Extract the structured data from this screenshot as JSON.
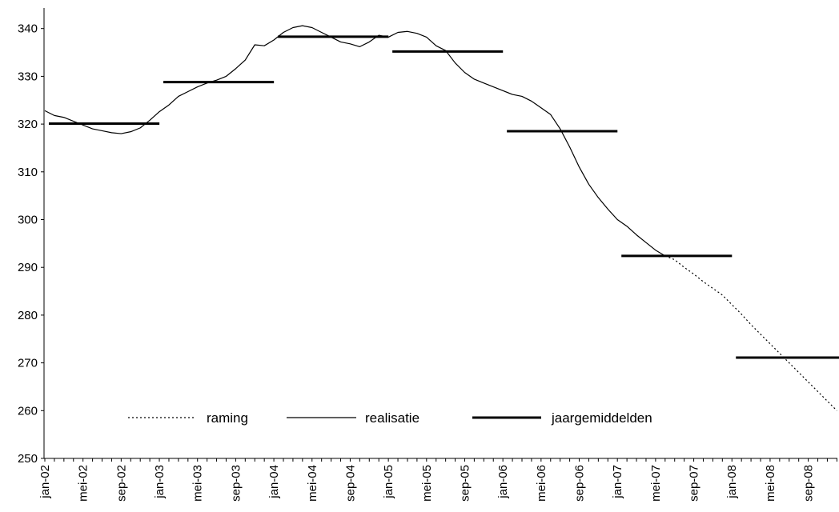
{
  "chart_data": {
    "type": "line",
    "title": "",
    "xlabel": "",
    "ylabel": "",
    "ylim": [
      250,
      345
    ],
    "yticks": [
      250,
      260,
      270,
      280,
      290,
      300,
      310,
      320,
      330,
      340
    ],
    "x_start_month": "2002-01",
    "x_range_months": [
      0,
      84
    ],
    "x_tick_labels": [
      "jan-02",
      "mei-02",
      "sep-02",
      "jan-03",
      "mei-03",
      "sep-03",
      "jan-04",
      "mei-04",
      "sep-04",
      "jan-05",
      "mei-05",
      "sep-05",
      "jan-06",
      "mei-06",
      "sep-06",
      "jan-07",
      "mei-07",
      "sep-07",
      "jan-08",
      "mei-08",
      "sep-08"
    ],
    "legend_position": "bottom-left, inside plot",
    "series": [
      {
        "name": "realisatie",
        "style": "solid-thin",
        "color": "#000000",
        "points": [
          [
            "2002-01",
            322.8
          ],
          [
            "2002-02",
            321.8
          ],
          [
            "2002-03",
            321.4
          ],
          [
            "2002-04",
            320.6
          ],
          [
            "2002-05",
            319.8
          ],
          [
            "2002-06",
            319.0
          ],
          [
            "2002-07",
            318.6
          ],
          [
            "2002-08",
            318.2
          ],
          [
            "2002-09",
            318.0
          ],
          [
            "2002-10",
            318.4
          ],
          [
            "2002-11",
            319.2
          ],
          [
            "2002-12",
            320.8
          ],
          [
            "2003-01",
            322.6
          ],
          [
            "2003-02",
            324.0
          ],
          [
            "2003-03",
            325.8
          ],
          [
            "2003-04",
            326.8
          ],
          [
            "2003-05",
            327.8
          ],
          [
            "2003-06",
            328.6
          ],
          [
            "2003-07",
            329.2
          ],
          [
            "2003-08",
            330.0
          ],
          [
            "2003-09",
            331.6
          ],
          [
            "2003-10",
            333.4
          ],
          [
            "2003-11",
            336.6
          ],
          [
            "2003-12",
            336.4
          ],
          [
            "2004-01",
            337.6
          ],
          [
            "2004-02",
            339.2
          ],
          [
            "2004-03",
            340.2
          ],
          [
            "2004-04",
            340.6
          ],
          [
            "2004-05",
            340.2
          ],
          [
            "2004-06",
            339.2
          ],
          [
            "2004-07",
            338.2
          ],
          [
            "2004-08",
            337.2
          ],
          [
            "2004-09",
            336.8
          ],
          [
            "2004-10",
            336.2
          ],
          [
            "2004-11",
            337.2
          ],
          [
            "2004-12",
            338.6
          ],
          [
            "2005-01",
            338.2
          ],
          [
            "2005-02",
            339.2
          ],
          [
            "2005-03",
            339.4
          ],
          [
            "2005-04",
            339.0
          ],
          [
            "2005-05",
            338.2
          ],
          [
            "2005-06",
            336.4
          ],
          [
            "2005-07",
            335.4
          ],
          [
            "2005-08",
            332.8
          ],
          [
            "2005-09",
            330.8
          ],
          [
            "2005-10",
            329.4
          ],
          [
            "2005-11",
            328.6
          ],
          [
            "2005-12",
            327.8
          ],
          [
            "2006-01",
            327.0
          ],
          [
            "2006-02",
            326.2
          ],
          [
            "2006-03",
            325.8
          ],
          [
            "2006-04",
            324.8
          ],
          [
            "2006-05",
            323.4
          ],
          [
            "2006-06",
            322.0
          ],
          [
            "2006-07",
            319.0
          ],
          [
            "2006-08",
            315.2
          ],
          [
            "2006-09",
            311.0
          ],
          [
            "2006-10",
            307.4
          ],
          [
            "2006-11",
            304.6
          ],
          [
            "2006-12",
            302.2
          ],
          [
            "2007-01",
            300.0
          ],
          [
            "2007-02",
            298.6
          ],
          [
            "2007-03",
            296.8
          ],
          [
            "2007-04",
            295.2
          ],
          [
            "2007-05",
            293.6
          ],
          [
            "2007-06",
            292.4
          ]
        ]
      },
      {
        "name": "raming",
        "style": "dotted",
        "color": "#000000",
        "points": [
          [
            "2007-06",
            292.4
          ],
          [
            "2007-07",
            291.6
          ],
          [
            "2007-08",
            290.0
          ],
          [
            "2007-09",
            288.6
          ],
          [
            "2007-10",
            287.0
          ],
          [
            "2007-11",
            285.6
          ],
          [
            "2007-12",
            284.2
          ],
          [
            "2008-01",
            282.2
          ],
          [
            "2008-02",
            280.2
          ],
          [
            "2008-03",
            278.0
          ],
          [
            "2008-04",
            276.0
          ],
          [
            "2008-05",
            274.0
          ],
          [
            "2008-06",
            272.0
          ],
          [
            "2008-07",
            270.0
          ],
          [
            "2008-08",
            268.0
          ],
          [
            "2008-09",
            266.0
          ],
          [
            "2008-10",
            264.0
          ],
          [
            "2008-11",
            262.0
          ],
          [
            "2008-12",
            260.0
          ]
        ]
      },
      {
        "name": "jaargemiddelden",
        "style": "solid-thick",
        "color": "#000000",
        "segments": [
          {
            "from": "2002-01",
            "to": "2002-12",
            "value": 320.1
          },
          {
            "from": "2003-01",
            "to": "2003-12",
            "value": 328.8
          },
          {
            "from": "2004-01",
            "to": "2004-12",
            "value": 338.3
          },
          {
            "from": "2005-01",
            "to": "2005-12",
            "value": 335.2
          },
          {
            "from": "2006-01",
            "to": "2006-12",
            "value": 318.5
          },
          {
            "from": "2007-01",
            "to": "2007-12",
            "value": 292.4
          },
          {
            "from": "2008-01",
            "to": "2008-12",
            "value": 271.1
          }
        ]
      }
    ]
  }
}
